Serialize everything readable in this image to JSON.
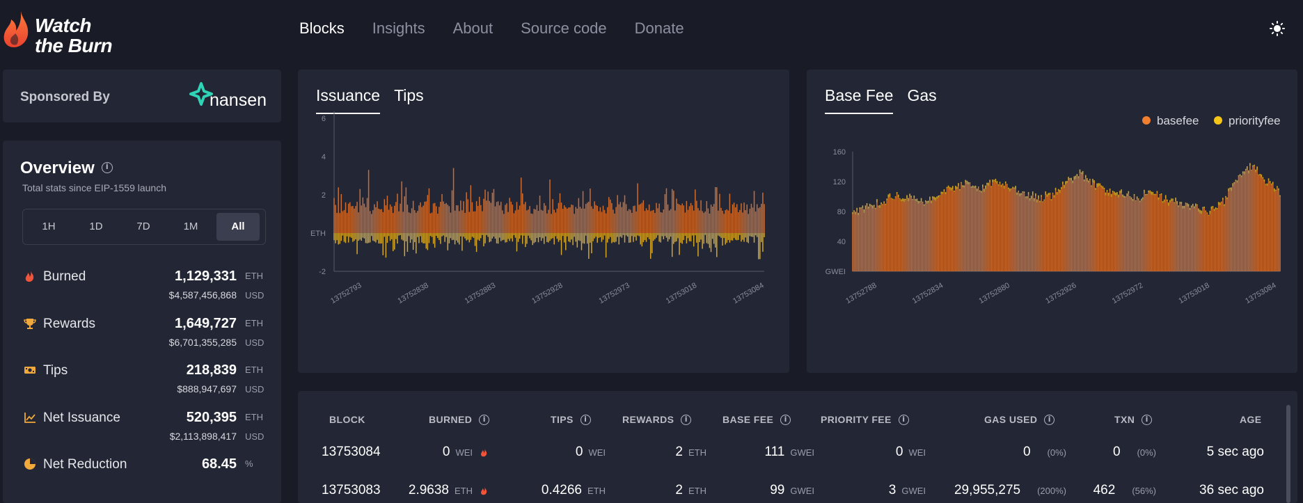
{
  "header": {
    "logo_line1": "Watch",
    "logo_line2": "the Burn",
    "nav": [
      {
        "label": "Blocks",
        "active": true
      },
      {
        "label": "Insights",
        "active": false
      },
      {
        "label": "About",
        "active": false
      },
      {
        "label": "Source code",
        "active": false
      },
      {
        "label": "Donate",
        "active": false
      }
    ],
    "theme_icon": "sun-icon"
  },
  "sponsor": {
    "label": "Sponsored By",
    "brand": "nansen"
  },
  "overview": {
    "title": "Overview",
    "subtitle": "Total stats since EIP-1559 launch",
    "timeframes": [
      "1H",
      "1D",
      "7D",
      "1M",
      "All"
    ],
    "active_timeframe": "All",
    "stats": [
      {
        "icon": "flame-icon",
        "label": "Burned",
        "value": "1,129,331",
        "unit": "ETH",
        "usd": "$4,587,456,868",
        "usd_unit": "USD"
      },
      {
        "icon": "trophy-icon",
        "label": "Rewards",
        "value": "1,649,727",
        "unit": "ETH",
        "usd": "$6,701,355,285",
        "usd_unit": "USD"
      },
      {
        "icon": "cash-icon",
        "label": "Tips",
        "value": "218,839",
        "unit": "ETH",
        "usd": "$888,947,697",
        "usd_unit": "USD"
      },
      {
        "icon": "trend-chart-icon",
        "label": "Net Issuance",
        "value": "520,395",
        "unit": "ETH",
        "usd": "$2,113,898,417",
        "usd_unit": "USD"
      },
      {
        "icon": "pie-icon",
        "label": "Net Reduction",
        "value": "68.45",
        "unit": "%"
      }
    ]
  },
  "colors": {
    "burn": "#cc6d33",
    "tip": "#d4a72c",
    "basefee": "#f08030",
    "priorityfee": "#f5c518",
    "panel": "#232634",
    "background": "#191b26"
  },
  "issuance_chart": {
    "tabs": [
      "Issuance",
      "Tips"
    ],
    "active_tab": "Issuance"
  },
  "fee_chart": {
    "tabs": [
      "Base Fee",
      "Gas"
    ],
    "active_tab": "Base Fee"
  },
  "chart_data": [
    {
      "type": "bar",
      "ylabel": "ETH",
      "ylim": [
        -2,
        6
      ],
      "yticks": [
        6,
        4,
        2,
        "ETH",
        -2
      ],
      "x_tick_labels": [
        "13752793",
        "13752838",
        "13752883",
        "13752928",
        "13752973",
        "13753018",
        "13753084"
      ],
      "x_range": [
        13752785,
        13753084
      ],
      "series": [
        {
          "name": "",
          "color": "#cc6d33",
          "values_summary": "positive issuance per block, mostly 0.5–2 ETH, occasional spikes up to ~3.4 ETH"
        },
        {
          "name": "",
          "color": "#d4a72c",
          "values_summary": "negative values per block, mostly 0 to -1 ETH, down to ~-1.8 ETH"
        }
      ],
      "grid": false
    },
    {
      "type": "bar",
      "ylabel": "GWEI",
      "ylim": [
        0,
        160
      ],
      "yticks": [
        160,
        120,
        80,
        40,
        "GWEI"
      ],
      "x_tick_labels": [
        "13752788",
        "13752834",
        "13752880",
        "13752926",
        "13752972",
        "13753018",
        "13753084"
      ],
      "x_range": [
        13752785,
        13753084
      ],
      "legend": [
        "basefee",
        "priorityfee"
      ],
      "legend_position": "top-right",
      "profile": [
        [
          13752785,
          75
        ],
        [
          13752795,
          85
        ],
        [
          13752805,
          90
        ],
        [
          13752815,
          100
        ],
        [
          13752825,
          95
        ],
        [
          13752835,
          88
        ],
        [
          13752845,
          102
        ],
        [
          13752855,
          110
        ],
        [
          13752865,
          115
        ],
        [
          13752875,
          108
        ],
        [
          13752885,
          120
        ],
        [
          13752895,
          110
        ],
        [
          13752905,
          100
        ],
        [
          13752915,
          95
        ],
        [
          13752925,
          100
        ],
        [
          13752935,
          118
        ],
        [
          13752945,
          128
        ],
        [
          13752955,
          112
        ],
        [
          13752965,
          104
        ],
        [
          13752975,
          102
        ],
        [
          13752985,
          96
        ],
        [
          13752995,
          106
        ],
        [
          13753005,
          92
        ],
        [
          13753015,
          88
        ],
        [
          13753025,
          84
        ],
        [
          13753035,
          78
        ],
        [
          13753045,
          92
        ],
        [
          13753055,
          125
        ],
        [
          13753065,
          140
        ],
        [
          13753075,
          118
        ],
        [
          13753084,
          105
        ]
      ],
      "grid": false
    }
  ],
  "table": {
    "columns": [
      "BLOCK",
      "BURNED",
      "TIPS",
      "REWARDS",
      "BASE FEE",
      "PRIORITY FEE",
      "GAS USED",
      "TXN",
      "AGE"
    ],
    "rows": [
      {
        "block": "13753084",
        "burned": "0",
        "burned_unit": "WEI",
        "tips": "0",
        "tips_unit": "WEI",
        "rewards": "2",
        "rewards_unit": "ETH",
        "basefee": "111",
        "basefee_unit": "GWEI",
        "priority": "0",
        "priority_unit": "WEI",
        "gas": "0",
        "gas_pct": "(0%)",
        "txn": "0",
        "txn_pct": "(0%)",
        "age": "5 sec ago"
      },
      {
        "block": "13753083",
        "burned": "2.9638",
        "burned_unit": "ETH",
        "tips": "0.4266",
        "tips_unit": "ETH",
        "rewards": "2",
        "rewards_unit": "ETH",
        "basefee": "99",
        "basefee_unit": "GWEI",
        "priority": "3",
        "priority_unit": "GWEI",
        "gas": "29,955,275",
        "gas_pct": "(200%)",
        "txn": "462",
        "txn_pct": "(56%)",
        "age": "36 sec ago"
      }
    ]
  }
}
